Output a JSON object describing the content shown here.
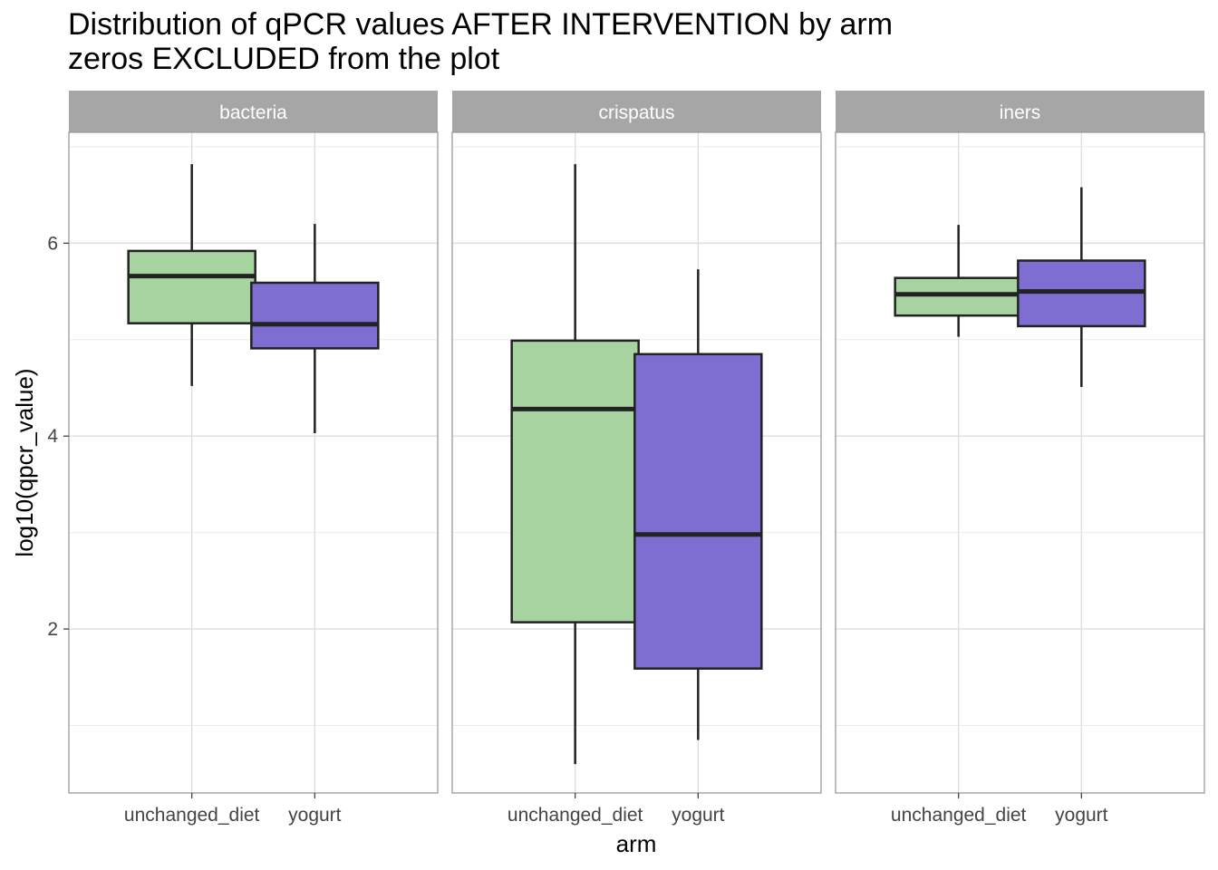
{
  "chart_data": {
    "type": "boxplot",
    "title": "Distribution of qPCR values AFTER INTERVENTION by arm",
    "subtitle": "zeros EXCLUDED from the plot",
    "xlabel": "arm",
    "ylabel": "log10(qpcr_value)",
    "y_ticks": [
      "2",
      "4",
      "6"
    ],
    "ylim": [
      0.3,
      7.15
    ],
    "grid": true,
    "categories": [
      "unchanged_diet",
      "yogurt"
    ],
    "category_colors": {
      "unchanged_diet": "#a7d3a1",
      "yogurt": "#7e6ed1"
    },
    "facets": [
      {
        "name": "bacteria",
        "boxes": [
          {
            "arm": "unchanged_diet",
            "min": 4.52,
            "q1": 5.17,
            "median": 5.66,
            "q3": 5.92,
            "max": 6.82
          },
          {
            "arm": "yogurt",
            "min": 4.03,
            "q1": 4.91,
            "median": 5.16,
            "q3": 5.59,
            "max": 6.2
          }
        ]
      },
      {
        "name": "crispatus",
        "boxes": [
          {
            "arm": "unchanged_diet",
            "min": 0.6,
            "q1": 2.07,
            "median": 4.28,
            "q3": 4.99,
            "max": 6.82
          },
          {
            "arm": "yogurt",
            "min": 0.85,
            "q1": 1.59,
            "median": 2.98,
            "q3": 4.85,
            "max": 5.73
          }
        ]
      },
      {
        "name": "iners",
        "boxes": [
          {
            "arm": "unchanged_diet",
            "min": 5.03,
            "q1": 5.25,
            "median": 5.47,
            "q3": 5.64,
            "max": 6.19
          },
          {
            "arm": "yogurt",
            "min": 4.51,
            "q1": 5.14,
            "median": 5.5,
            "q3": 5.82,
            "max": 6.58
          }
        ]
      }
    ]
  }
}
